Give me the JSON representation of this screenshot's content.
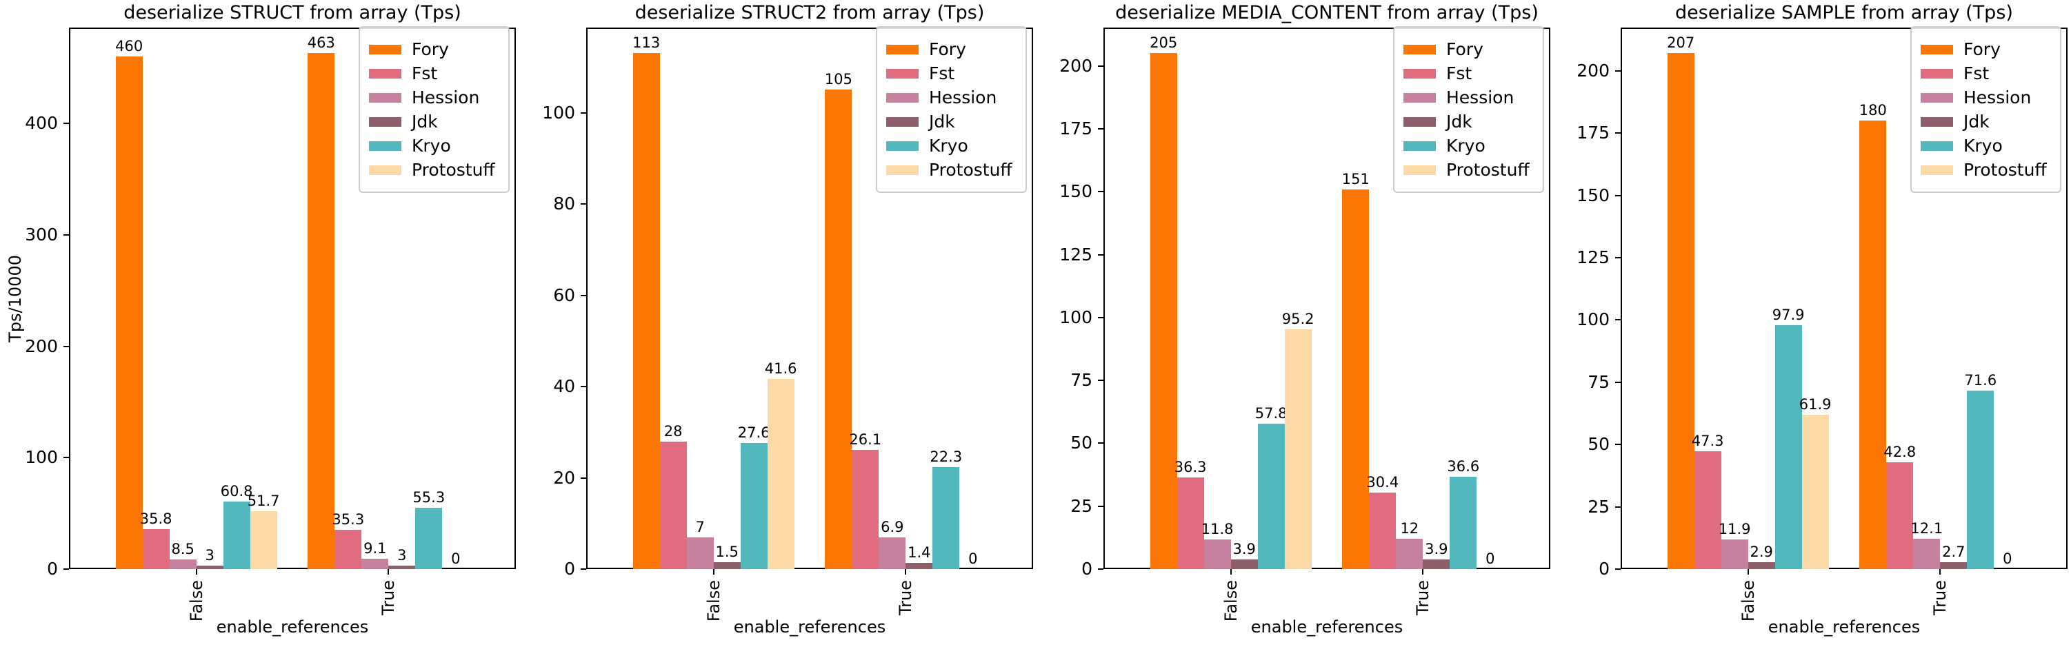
{
  "figure": {
    "background": "#ffffff",
    "text_color": "#000000",
    "axes_color": "#000000",
    "legend_border_color": "#cccccc"
  },
  "palette": {
    "Fory": "#FB7605",
    "Fst": "#E16C80",
    "Hession": "#C6819F",
    "Jdk": "#8D5F6B",
    "Kryo": "#53B8BD",
    "Protostuff": "#FCD9A6"
  },
  "chart_data": [
    {
      "type": "bar",
      "title": "deserialize STRUCT from array (Tps)",
      "xlabel": "enable_references",
      "ylabel": "Tps/10000",
      "categories": [
        "False",
        "True"
      ],
      "yticks": [
        0,
        100,
        200,
        300,
        400
      ],
      "ylim": [
        0,
        486
      ],
      "grid": false,
      "legend_position": "upper right",
      "legend_entries": [
        "Fory",
        "Fst",
        "Hession",
        "Jdk",
        "Kryo",
        "Protostuff"
      ],
      "series": [
        {
          "name": "Fory",
          "values": [
            460,
            463
          ],
          "labels": [
            "460",
            "463"
          ]
        },
        {
          "name": "Fst",
          "values": [
            35.8,
            35.3
          ],
          "labels": [
            "35.8",
            "35.3"
          ]
        },
        {
          "name": "Hession",
          "values": [
            8.5,
            9.1
          ],
          "labels": [
            "8.5",
            "9.1"
          ]
        },
        {
          "name": "Jdk",
          "values": [
            3,
            3
          ],
          "labels": [
            "3",
            "3"
          ]
        },
        {
          "name": "Kryo",
          "values": [
            60.8,
            55.3
          ],
          "labels": [
            "60.8",
            "55.3"
          ]
        },
        {
          "name": "Protostuff",
          "values": [
            51.7,
            0
          ],
          "labels": [
            "51.7",
            "0"
          ]
        }
      ]
    },
    {
      "type": "bar",
      "title": "deserialize STRUCT2 from array (Tps)",
      "xlabel": "enable_references",
      "ylabel": "",
      "categories": [
        "False",
        "True"
      ],
      "yticks": [
        0,
        20,
        40,
        60,
        80,
        100
      ],
      "ylim": [
        0,
        118.65
      ],
      "grid": false,
      "legend_position": "upper right",
      "legend_entries": [
        "Fory",
        "Fst",
        "Hession",
        "Jdk",
        "Kryo",
        "Protostuff"
      ],
      "series": [
        {
          "name": "Fory",
          "values": [
            113,
            105
          ],
          "labels": [
            "113",
            "105"
          ]
        },
        {
          "name": "Fst",
          "values": [
            28,
            26.1
          ],
          "labels": [
            "28",
            "26.1"
          ]
        },
        {
          "name": "Hession",
          "values": [
            7,
            6.9
          ],
          "labels": [
            "7",
            "6.9"
          ]
        },
        {
          "name": "Jdk",
          "values": [
            1.5,
            1.4
          ],
          "labels": [
            "1.5",
            "1.4"
          ]
        },
        {
          "name": "Kryo",
          "values": [
            27.6,
            22.3
          ],
          "labels": [
            "27.6",
            "22.3"
          ]
        },
        {
          "name": "Protostuff",
          "values": [
            41.6,
            0
          ],
          "labels": [
            "41.6",
            "0"
          ]
        }
      ]
    },
    {
      "type": "bar",
      "title": "deserialize MEDIA_CONTENT from array (Tps)",
      "xlabel": "enable_references",
      "ylabel": "",
      "categories": [
        "False",
        "True"
      ],
      "yticks": [
        0,
        25,
        50,
        75,
        100,
        125,
        150,
        175,
        200
      ],
      "ylim": [
        0,
        215.25
      ],
      "grid": false,
      "legend_position": "upper right",
      "legend_entries": [
        "Fory",
        "Fst",
        "Hession",
        "Jdk",
        "Kryo",
        "Protostuff"
      ],
      "series": [
        {
          "name": "Fory",
          "values": [
            205,
            151
          ],
          "labels": [
            "205",
            "151"
          ]
        },
        {
          "name": "Fst",
          "values": [
            36.3,
            30.4
          ],
          "labels": [
            "36.3",
            "30.4"
          ]
        },
        {
          "name": "Hession",
          "values": [
            11.8,
            12
          ],
          "labels": [
            "11.8",
            "12"
          ]
        },
        {
          "name": "Jdk",
          "values": [
            3.9,
            3.9
          ],
          "labels": [
            "3.9",
            "3.9"
          ]
        },
        {
          "name": "Kryo",
          "values": [
            57.8,
            36.6
          ],
          "labels": [
            "57.8",
            "36.6"
          ]
        },
        {
          "name": "Protostuff",
          "values": [
            95.2,
            0
          ],
          "labels": [
            "95.2",
            "0"
          ]
        }
      ]
    },
    {
      "type": "bar",
      "title": "deserialize SAMPLE from array (Tps)",
      "xlabel": "enable_references",
      "ylabel": "",
      "categories": [
        "False",
        "True"
      ],
      "yticks": [
        0,
        25,
        50,
        75,
        100,
        125,
        150,
        175,
        200
      ],
      "ylim": [
        0,
        217.35
      ],
      "grid": false,
      "legend_position": "upper right",
      "legend_entries": [
        "Fory",
        "Fst",
        "Hession",
        "Jdk",
        "Kryo",
        "Protostuff"
      ],
      "series": [
        {
          "name": "Fory",
          "values": [
            207,
            180
          ],
          "labels": [
            "207",
            "180"
          ]
        },
        {
          "name": "Fst",
          "values": [
            47.3,
            42.8
          ],
          "labels": [
            "47.3",
            "42.8"
          ]
        },
        {
          "name": "Hession",
          "values": [
            11.9,
            12.1
          ],
          "labels": [
            "11.9",
            "12.1"
          ]
        },
        {
          "name": "Jdk",
          "values": [
            2.9,
            2.7
          ],
          "labels": [
            "2.9",
            "2.7"
          ]
        },
        {
          "name": "Kryo",
          "values": [
            97.9,
            71.6
          ],
          "labels": [
            "97.9",
            "71.6"
          ]
        },
        {
          "name": "Protostuff",
          "values": [
            61.9,
            0
          ],
          "labels": [
            "61.9",
            "0"
          ]
        }
      ]
    }
  ]
}
